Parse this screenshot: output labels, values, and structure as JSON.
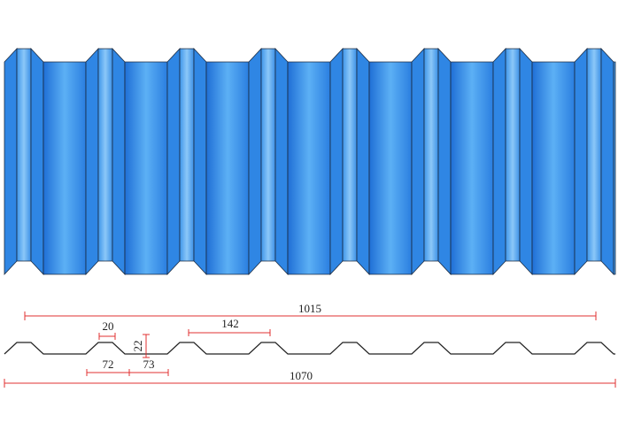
{
  "dimensions": {
    "effective_width": "1015",
    "total_width": "1070",
    "rib_pitch": "142",
    "rib_top": "20",
    "rib_height": "22",
    "left_base": "72",
    "right_base": "73"
  }
}
